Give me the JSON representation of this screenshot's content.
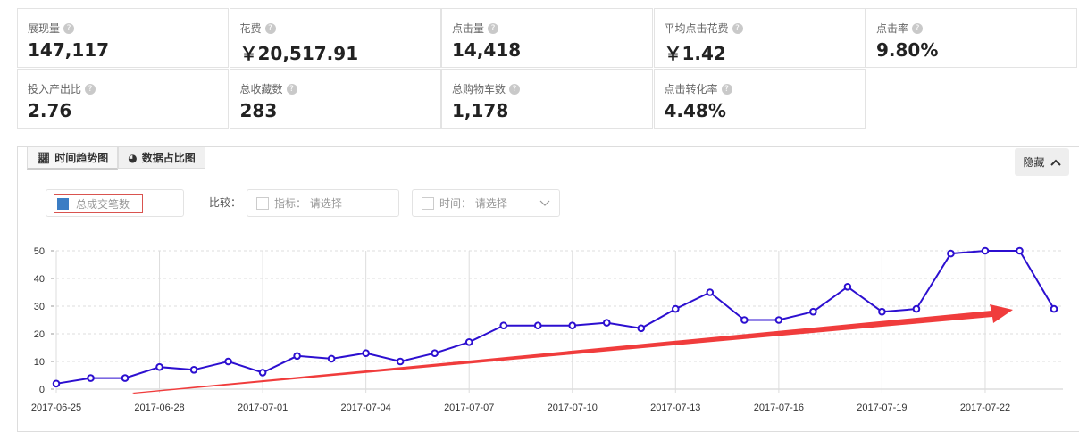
{
  "metrics": [
    {
      "label": "展现量",
      "value": "147,117"
    },
    {
      "label": "花费",
      "value": "￥20,517.91"
    },
    {
      "label": "点击量",
      "value": "14,418"
    },
    {
      "label": "平均点击花费",
      "value": "￥1.42"
    },
    {
      "label": "点击率",
      "value": "9.80%"
    },
    {
      "label": "投入产出比",
      "value": "2.76"
    },
    {
      "label": "总收藏数",
      "value": "283"
    },
    {
      "label": "总购物车数",
      "value": "1,178"
    },
    {
      "label": "点击转化率",
      "value": "4.48%"
    }
  ],
  "help_icon": "?",
  "tabs": [
    {
      "label": "时间趋势图",
      "icon": "line-chart-icon"
    },
    {
      "label": "数据占比图",
      "icon": "pie-chart-icon"
    }
  ],
  "hide_button": {
    "label": "隐藏",
    "icon": "chevron-up-icon"
  },
  "legend": {
    "label": "总成交笔数",
    "color": "#3b7dc4"
  },
  "compare": {
    "label": "比较：",
    "metric": "指标： 请选择",
    "time": "时间： 请选择"
  },
  "colors": {
    "series": "#2c0fd0",
    "arrow": "#f03c3c"
  },
  "chart_data": {
    "type": "line",
    "x": [
      "2017-06-25",
      "2017-06-26",
      "2017-06-27",
      "2017-06-28",
      "2017-06-29",
      "2017-06-30",
      "2017-07-01",
      "2017-07-02",
      "2017-07-03",
      "2017-07-04",
      "2017-07-05",
      "2017-07-06",
      "2017-07-07",
      "2017-07-08",
      "2017-07-09",
      "2017-07-10",
      "2017-07-11",
      "2017-07-12",
      "2017-07-13",
      "2017-07-14",
      "2017-07-15",
      "2017-07-16",
      "2017-07-17",
      "2017-07-18",
      "2017-07-19",
      "2017-07-20",
      "2017-07-21",
      "2017-07-22",
      "2017-07-23",
      "2017-07-24"
    ],
    "series": [
      {
        "name": "总成交笔数",
        "values": [
          2,
          4,
          4,
          8,
          7,
          10,
          6,
          12,
          11,
          13,
          10,
          13,
          17,
          23,
          23,
          23,
          24,
          22,
          29,
          35,
          25,
          25,
          28,
          37,
          28,
          29,
          49,
          50,
          50,
          29
        ]
      }
    ],
    "xticks": [
      "2017-06-25",
      "2017-06-28",
      "2017-07-01",
      "2017-07-04",
      "2017-07-07",
      "2017-07-10",
      "2017-07-13",
      "2017-07-16",
      "2017-07-19",
      "2017-07-22"
    ],
    "yticks": [
      0,
      10,
      20,
      30,
      40,
      50
    ],
    "ylim": [
      0,
      50
    ],
    "grid": true,
    "annotation": "red upward trend arrow"
  }
}
